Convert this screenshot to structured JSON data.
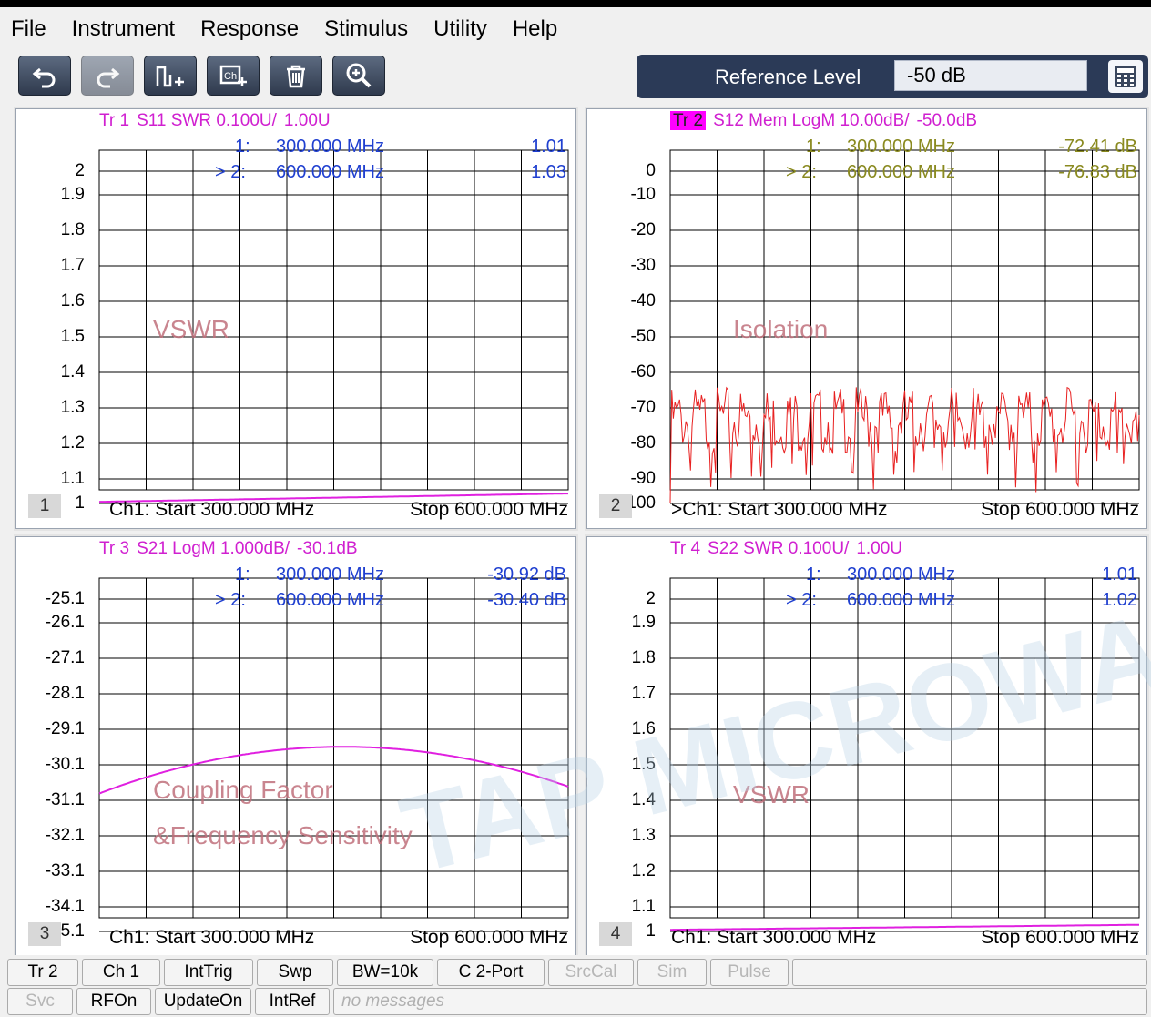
{
  "menu": [
    "File",
    "Instrument",
    "Response",
    "Stimulus",
    "Utility",
    "Help"
  ],
  "toolbar": {
    "icons": [
      "undo-icon",
      "redo-icon",
      "marker-add-icon",
      "channel-add-icon",
      "trash-icon",
      "zoom-icon"
    ]
  },
  "ref_level": {
    "label": "Reference Level",
    "value": "-50 dB"
  },
  "panels": [
    {
      "num": "1",
      "title": [
        "Tr 1",
        "S11 SWR 0.100U/",
        "1.00U"
      ],
      "ylabels": [
        "2",
        "1.9",
        "1.8",
        "1.7",
        "1.6",
        "1.5",
        "1.4",
        "1.3",
        "1.2",
        "1.1",
        "1"
      ],
      "markers": [
        {
          "id": "1:",
          "freq": "300.000  MHz",
          "val": "1.01"
        },
        {
          "id": "> 2:",
          "freq": "600.000  MHz",
          "val": "1.03"
        }
      ],
      "watermark": [
        "VSWR"
      ],
      "start": "Ch1:  Start  300.000 MHz",
      "stop": "Stop  600.000 MHz",
      "trace_color": "#e020e0",
      "trace_y": [
        1.005,
        1.03
      ]
    },
    {
      "num": "2",
      "title": [
        "Tr 2",
        "S12 Mem LogM 10.00dB/",
        "-50.0dB"
      ],
      "ylabels": [
        "0",
        "-10",
        "-20",
        "-30",
        "-40",
        "-50",
        "-60",
        "-70",
        "-80",
        "-90",
        "-100"
      ],
      "markers": [
        {
          "id": "1:",
          "freq": "300.000  MHz",
          "val": "-72.41 dB"
        },
        {
          "id": "> 2:",
          "freq": "600.000  MHz",
          "val": "-76.83 dB"
        }
      ],
      "watermark": [
        "Isolation"
      ],
      "start": ">Ch1:  Start  300.000 MHz",
      "stop": "Stop  600.000 MHz",
      "trace_color": "#e82020",
      "trace_y": [
        -72.41,
        -76.83
      ]
    },
    {
      "num": "3",
      "title": [
        "Tr 3",
        "S21 LogM 1.000dB/",
        "-30.1dB"
      ],
      "ylabels": [
        "-25.1",
        "-26.1",
        "-27.1",
        "-28.1",
        "-29.1",
        "-30.1",
        "-31.1",
        "-32.1",
        "-33.1",
        "-34.1",
        "-35.1"
      ],
      "markers": [
        {
          "id": "1:",
          "freq": "300.000  MHz",
          "val": "-30.92 dB"
        },
        {
          "id": "> 2:",
          "freq": "600.000  MHz",
          "val": "-30.40 dB"
        }
      ],
      "watermark": [
        "Coupling Factor",
        "&Frequency Sensitivity"
      ],
      "start": "Ch1:  Start  300.000 MHz",
      "stop": "Stop  600.000 MHz",
      "trace_color": "#e020e0",
      "trace_y": [
        -30.92,
        -30.4
      ]
    },
    {
      "num": "4",
      "title": [
        "Tr 4",
        "S22 SWR 0.100U/",
        "1.00U"
      ],
      "ylabels": [
        "2",
        "1.9",
        "1.8",
        "1.7",
        "1.6",
        "1.5",
        "1.4",
        "1.3",
        "1.2",
        "1.1",
        "1"
      ],
      "markers": [
        {
          "id": "1:",
          "freq": "300.000  MHz",
          "val": "1.01"
        },
        {
          "id": "> 2:",
          "freq": "600.000  MHz",
          "val": "1.02"
        }
      ],
      "watermark": [
        "VSWR"
      ],
      "start": "Ch1:  Start  300.000 MHz",
      "stop": "Stop  600.000 MHz",
      "trace_color": "#e020e0",
      "trace_y": [
        1.005,
        1.02
      ]
    }
  ],
  "statusbar": {
    "row1": [
      "Tr 2",
      "Ch 1",
      "IntTrig",
      "Swp",
      "BW=10k",
      "C  2-Port",
      "SrcCal",
      "Sim",
      "Pulse"
    ],
    "row2": [
      "Svc",
      "RFOn",
      "UpdateOn",
      "IntRef",
      "no messages"
    ]
  },
  "watermark_brand": "TAP MICROWA",
  "colors": {
    "title_magenta": "#d020d0",
    "marker_blue": "#2040d0",
    "marker_olive": "#8a8a20",
    "grid": "#000000"
  }
}
